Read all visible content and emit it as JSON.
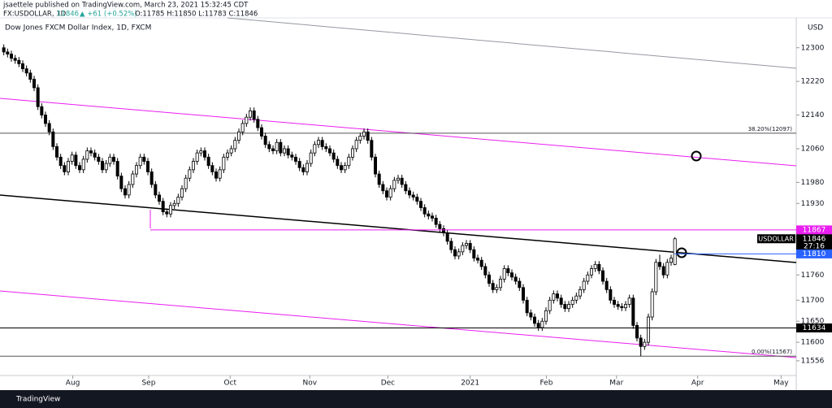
{
  "header": {
    "publisher": "jsaettele published on TradingView.com, March 23, 2021 15:32:45 CDT",
    "symbol": "FX:USDOLLAR, 1D",
    "last": "11846",
    "change": "▲ +61 (+0.52%)",
    "ohlc": "O:11785 H:11850 L:11783 C:11846"
  },
  "footer": {
    "brand": "TradingView"
  },
  "chart_data": {
    "type": "candlestick",
    "title": "Dow Jones FXCM Dollar Index, 1D, FXCM",
    "y_unit": "USD",
    "up_color": "#ffffff",
    "down_color": "#000000",
    "open": [
      12300,
      12290,
      12285,
      12275,
      12270,
      12262,
      12250,
      12240,
      12225,
      12205,
      12160,
      12140,
      12120,
      12100,
      12065,
      12040,
      12020,
      12005,
      12030,
      12045,
      12020,
      12010,
      12035,
      12055,
      12050,
      12040,
      12030,
      12010,
      12025,
      12040,
      12030,
      11995,
      11965,
      11950,
      11975,
      12000,
      12020,
      12040,
      12030,
      12005,
      11975,
      11950,
      11935,
      11910,
      11905,
      11925,
      11930,
      11945,
      11965,
      11990,
      12010,
      12030,
      12050,
      12055,
      12040,
      12020,
      12005,
      11990,
      12010,
      12040,
      12050,
      12060,
      12080,
      12100,
      12120,
      12135,
      12150,
      12130,
      12110,
      12090,
      12070,
      12060,
      12055,
      12075,
      12050,
      12060,
      12045,
      12040,
      12030,
      12015,
      12005,
      12025,
      12050,
      12070,
      12080,
      12065,
      12060,
      12050,
      12035,
      12020,
      12010,
      12020,
      12040,
      12060,
      12080,
      12090,
      12100,
      12080,
      12040,
      12000,
      11975,
      11960,
      11945,
      11965,
      11985,
      11990,
      11975,
      11960,
      11950,
      11945,
      11935,
      11920,
      11905,
      11900,
      11895,
      11880,
      11870,
      11860,
      11840,
      11820,
      11805,
      11815,
      11830,
      11835,
      11820,
      11800,
      11795,
      11780,
      11760,
      11740,
      11725,
      11730,
      11750,
      11775,
      11765,
      11755,
      11745,
      11730,
      11700,
      11670,
      11660,
      11645,
      11635,
      11650,
      11675,
      11700,
      11715,
      11705,
      11690,
      11680,
      11690,
      11700,
      11710,
      11725,
      11745,
      11760,
      11775,
      11785,
      11770,
      11745,
      11725,
      11700,
      11690,
      11685,
      11682,
      11690,
      11705,
      11640,
      11610,
      11590,
      11600,
      11660,
      11720,
      11790,
      11780,
      11760,
      11790,
      11785
    ],
    "high": [
      12308,
      12298,
      12293,
      12283,
      12278,
      12270,
      12258,
      12248,
      12233,
      12213,
      12168,
      12148,
      12128,
      12108,
      12073,
      12048,
      12028,
      12038,
      12053,
      12053,
      12028,
      12043,
      12063,
      12063,
      12058,
      12048,
      12038,
      12033,
      12048,
      12048,
      12038,
      12003,
      11973,
      11983,
      12008,
      12028,
      12048,
      12048,
      12038,
      12013,
      11983,
      11958,
      11943,
      11918,
      11933,
      11938,
      11953,
      11973,
      11998,
      12018,
      12038,
      12058,
      12063,
      12063,
      12048,
      12028,
      12013,
      12018,
      12048,
      12058,
      12068,
      12088,
      12108,
      12128,
      12143,
      12158,
      12158,
      12138,
      12118,
      12098,
      12078,
      12068,
      12083,
      12083,
      12068,
      12068,
      12053,
      12048,
      12038,
      12023,
      12033,
      12058,
      12078,
      12088,
      12088,
      12073,
      12068,
      12058,
      12043,
      12028,
      12028,
      12048,
      12068,
      12088,
      12098,
      12108,
      12108,
      12088,
      12048,
      12008,
      11983,
      11968,
      11973,
      11993,
      11998,
      11998,
      11983,
      11968,
      11958,
      11953,
      11943,
      11928,
      11913,
      11908,
      11903,
      11888,
      11878,
      11868,
      11848,
      11828,
      11823,
      11838,
      11843,
      11843,
      11828,
      11808,
      11803,
      11788,
      11768,
      11748,
      11738,
      11758,
      11783,
      11783,
      11773,
      11763,
      11753,
      11738,
      11708,
      11678,
      11668,
      11653,
      11658,
      11683,
      11708,
      11723,
      11723,
      11713,
      11698,
      11698,
      11708,
      11718,
      11733,
      11753,
      11768,
      11783,
      11793,
      11793,
      11778,
      11753,
      11733,
      11708,
      11698,
      11693,
      11698,
      11713,
      11713,
      11648,
      11618,
      11608,
      11668,
      11728,
      11798,
      11808,
      11788,
      11798,
      11808,
      11850
    ],
    "low": [
      12282,
      12277,
      12267,
      12262,
      12254,
      12242,
      12232,
      12217,
      12197,
      12152,
      12132,
      12112,
      12092,
      12057,
      12032,
      12012,
      11997,
      11997,
      12022,
      12012,
      12002,
      12002,
      12027,
      12042,
      12032,
      12022,
      12002,
      12002,
      12017,
      12022,
      11987,
      11957,
      11942,
      11942,
      11967,
      11992,
      12012,
      12022,
      11997,
      11967,
      11942,
      11927,
      11902,
      11897,
      11897,
      11917,
      11922,
      11937,
      11957,
      11982,
      12002,
      12022,
      12042,
      12032,
      12012,
      11997,
      11982,
      11982,
      12002,
      12032,
      12042,
      12052,
      12072,
      12092,
      12112,
      12127,
      12122,
      12102,
      12082,
      12062,
      12052,
      12047,
      12047,
      12042,
      12042,
      12037,
      12032,
      12022,
      12007,
      11997,
      11997,
      12017,
      12042,
      12062,
      12057,
      12052,
      12042,
      12027,
      12012,
      12002,
      12002,
      12012,
      12032,
      12052,
      12072,
      12082,
      12072,
      12032,
      11992,
      11967,
      11952,
      11937,
      11937,
      11957,
      11977,
      11967,
      11952,
      11942,
      11937,
      11927,
      11912,
      11897,
      11892,
      11887,
      11872,
      11862,
      11852,
      11832,
      11812,
      11797,
      11797,
      11807,
      11822,
      11812,
      11792,
      11787,
      11772,
      11752,
      11732,
      11717,
      11717,
      11722,
      11742,
      11757,
      11747,
      11737,
      11722,
      11692,
      11662,
      11652,
      11637,
      11627,
      11627,
      11642,
      11667,
      11692,
      11697,
      11682,
      11672,
      11672,
      11682,
      11692,
      11702,
      11717,
      11737,
      11752,
      11767,
      11762,
      11737,
      11717,
      11692,
      11682,
      11677,
      11674,
      11674,
      11682,
      11632,
      11602,
      11567,
      11582,
      11592,
      11652,
      11712,
      11772,
      11752,
      11752,
      11782,
      11783
    ],
    "close": [
      12290,
      12285,
      12275,
      12270,
      12262,
      12250,
      12240,
      12225,
      12205,
      12160,
      12140,
      12120,
      12100,
      12065,
      12040,
      12020,
      12005,
      12030,
      12045,
      12020,
      12010,
      12035,
      12055,
      12050,
      12040,
      12030,
      12010,
      12025,
      12040,
      12030,
      11995,
      11965,
      11950,
      11975,
      12000,
      12020,
      12040,
      12030,
      12005,
      11975,
      11950,
      11935,
      11910,
      11905,
      11925,
      11930,
      11945,
      11965,
      11990,
      12010,
      12030,
      12050,
      12055,
      12040,
      12020,
      12005,
      11990,
      12010,
      12040,
      12050,
      12060,
      12080,
      12100,
      12120,
      12135,
      12150,
      12130,
      12110,
      12090,
      12070,
      12060,
      12055,
      12075,
      12050,
      12060,
      12045,
      12040,
      12030,
      12015,
      12005,
      12025,
      12050,
      12070,
      12080,
      12065,
      12060,
      12050,
      12035,
      12020,
      12010,
      12020,
      12040,
      12060,
      12080,
      12090,
      12100,
      12080,
      12040,
      12000,
      11975,
      11960,
      11945,
      11965,
      11985,
      11990,
      11975,
      11960,
      11950,
      11945,
      11935,
      11920,
      11905,
      11900,
      11895,
      11880,
      11870,
      11860,
      11840,
      11820,
      11805,
      11815,
      11830,
      11835,
      11820,
      11800,
      11795,
      11780,
      11760,
      11740,
      11725,
      11730,
      11750,
      11775,
      11765,
      11755,
      11745,
      11730,
      11700,
      11670,
      11660,
      11645,
      11635,
      11650,
      11675,
      11700,
      11715,
      11705,
      11690,
      11680,
      11690,
      11700,
      11710,
      11725,
      11745,
      11760,
      11775,
      11785,
      11770,
      11745,
      11725,
      11700,
      11690,
      11685,
      11682,
      11690,
      11705,
      11640,
      11610,
      11590,
      11600,
      11660,
      11720,
      11790,
      11780,
      11760,
      11790,
      11800,
      11846
    ],
    "xlim": [
      -1,
      209
    ],
    "xticks": [
      {
        "value": 18.2,
        "label": "Aug"
      },
      {
        "value": 38.2,
        "label": "Sep"
      },
      {
        "value": 59.7,
        "label": "Oct"
      },
      {
        "value": 80.7,
        "label": "Nov"
      },
      {
        "value": 101.3,
        "label": "Dec"
      },
      {
        "value": 123,
        "label": "2021"
      },
      {
        "value": 143.1,
        "label": "Feb"
      },
      {
        "value": 161.6,
        "label": "Mar"
      },
      {
        "value": 183,
        "label": "Apr"
      },
      {
        "value": 205,
        "label": "May"
      }
    ],
    "ylim": [
      11521,
      12371
    ],
    "yticks": [
      12300,
      12220,
      12140,
      12060,
      11980,
      11930,
      11760,
      11700,
      11650,
      11600,
      11556
    ],
    "fib_levels": [
      {
        "value": 12097,
        "label": "38.20%(12097)"
      },
      {
        "value": 11567,
        "label": "0.00%(11567)"
      }
    ],
    "price_labels": [
      {
        "value": 11867,
        "color": "#e91ef0"
      },
      {
        "value": 11846,
        "color": "#000000",
        "name": "USDOLLAR",
        "countdown": "27:16"
      },
      {
        "value": 11810,
        "color": "#2962ff"
      },
      {
        "value": 11634,
        "color": "#000000"
      }
    ]
  }
}
